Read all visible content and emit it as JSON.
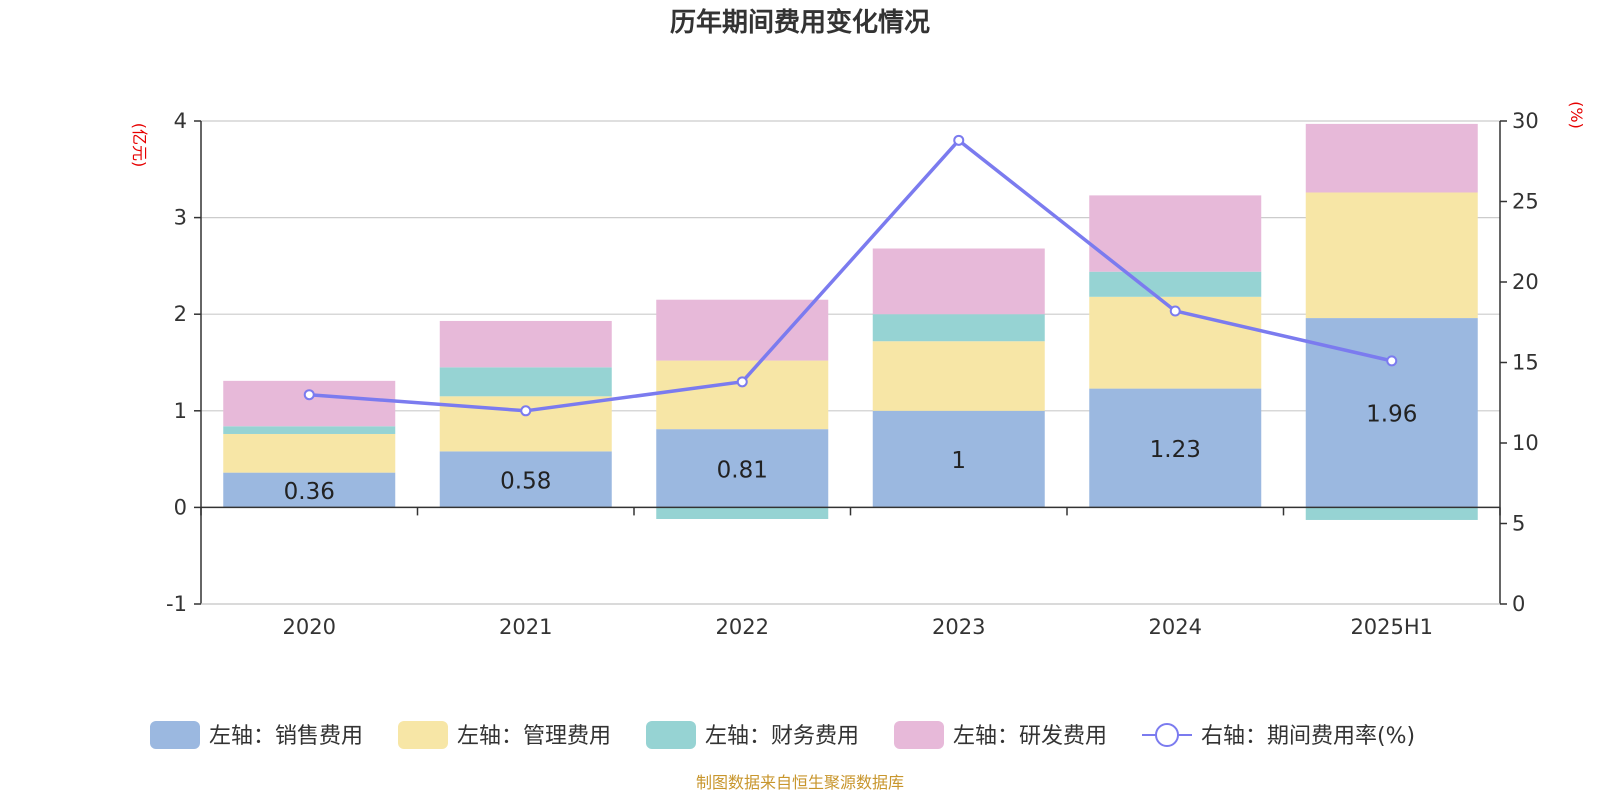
{
  "chart_data": {
    "type": "bar",
    "stacked": true,
    "title": "历年期间费用变化情况",
    "categories": [
      "2020",
      "2021",
      "2022",
      "2023",
      "2024",
      "2025H1"
    ],
    "y_left": {
      "unit_label": "(亿元)",
      "ylim": [
        -1,
        4
      ],
      "ticks": [
        "-1",
        "0",
        "1",
        "2",
        "3",
        "4"
      ]
    },
    "y_right": {
      "unit_label": "(%)",
      "ylim": [
        0,
        30
      ],
      "ticks": [
        "0",
        "5",
        "10",
        "15",
        "20",
        "25",
        "30"
      ]
    },
    "grid": true,
    "legend_position": "bottom",
    "series": [
      {
        "name": "左轴：销售费用",
        "axis": "left",
        "color": "#9bb8e0",
        "values": [
          0.36,
          0.58,
          0.81,
          1.0,
          1.23,
          1.96
        ],
        "labels": [
          "0.36",
          "0.58",
          "0.81",
          "1",
          "1.23",
          "1.96"
        ]
      },
      {
        "name": "左轴：管理费用",
        "axis": "left",
        "color": "#f7e6a6",
        "values": [
          0.4,
          0.57,
          0.71,
          0.72,
          0.95,
          1.3
        ]
      },
      {
        "name": "左轴：财务费用",
        "axis": "left",
        "color": "#96d3d3",
        "values": [
          0.08,
          0.3,
          -0.12,
          0.28,
          0.26,
          -0.13
        ]
      },
      {
        "name": "左轴：研发费用",
        "axis": "left",
        "color": "#e7b9d9",
        "values": [
          0.47,
          0.48,
          0.63,
          0.68,
          0.79,
          0.71
        ]
      },
      {
        "name": "右轴：期间费用率(%)",
        "axis": "right",
        "type": "line",
        "color": "#7b7bef",
        "values": [
          13.0,
          12.0,
          13.8,
          28.8,
          18.2,
          15.1
        ]
      }
    ]
  },
  "source_text": "制图数据来自恒生聚源数据库"
}
